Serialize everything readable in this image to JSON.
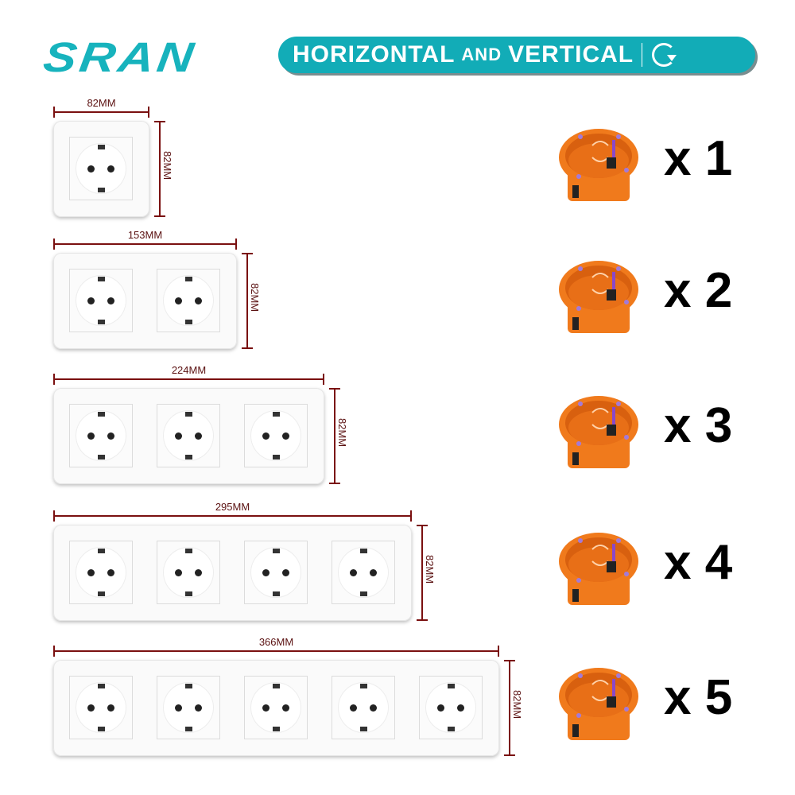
{
  "brand": {
    "logo_text": "SRAN",
    "accent": "#12acb7"
  },
  "banner": {
    "part1": "HORIZONTAL",
    "part2": "AND",
    "part3": "VERTICAL",
    "icon": "rotate-icon"
  },
  "dimension_color": "#7a1010",
  "box_color": "#f07a1c",
  "rows": [
    {
      "gangs": 1,
      "width_label": "82MM",
      "height_label": "82MM",
      "qty_label": "x 1"
    },
    {
      "gangs": 2,
      "width_label": "153MM",
      "height_label": "82MM",
      "qty_label": "x 2"
    },
    {
      "gangs": 3,
      "width_label": "224MM",
      "height_label": "82MM",
      "qty_label": "x 3"
    },
    {
      "gangs": 4,
      "width_label": "295MM",
      "height_label": "82MM",
      "qty_label": "x 4"
    },
    {
      "gangs": 5,
      "width_label": "366MM",
      "height_label": "82MM",
      "qty_label": "x 5"
    }
  ]
}
